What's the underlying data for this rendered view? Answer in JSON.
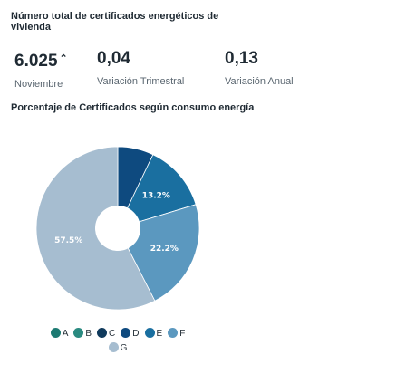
{
  "kpi_section": {
    "title": "Número total de certificados energéticos de vivienda",
    "items": [
      {
        "value": "6.025",
        "trend_icon": "arrow-up-icon",
        "label": "Noviembre"
      },
      {
        "value": "0,04",
        "label": "Variación Trimestral"
      },
      {
        "value": "0,13",
        "label": "Variación Anual"
      }
    ]
  },
  "chart_data": {
    "type": "pie",
    "title": "Porcentaje de Certificados según consumo energía",
    "donut": true,
    "categories": [
      "A",
      "B",
      "C",
      "D",
      "E",
      "F",
      "G"
    ],
    "values": [
      0.0,
      0.0,
      0.0,
      7.1,
      13.2,
      22.2,
      57.5
    ],
    "labels": [
      "",
      "",
      "",
      "",
      "13.2%",
      "22.2%",
      "57.5%"
    ],
    "colors": [
      "#1c7a72",
      "#2a8a80",
      "#103a5c",
      "#0e4a7f",
      "#1a6fa0",
      "#5b98bf",
      "#a6bdd0"
    ],
    "legend_position": "bottom"
  }
}
